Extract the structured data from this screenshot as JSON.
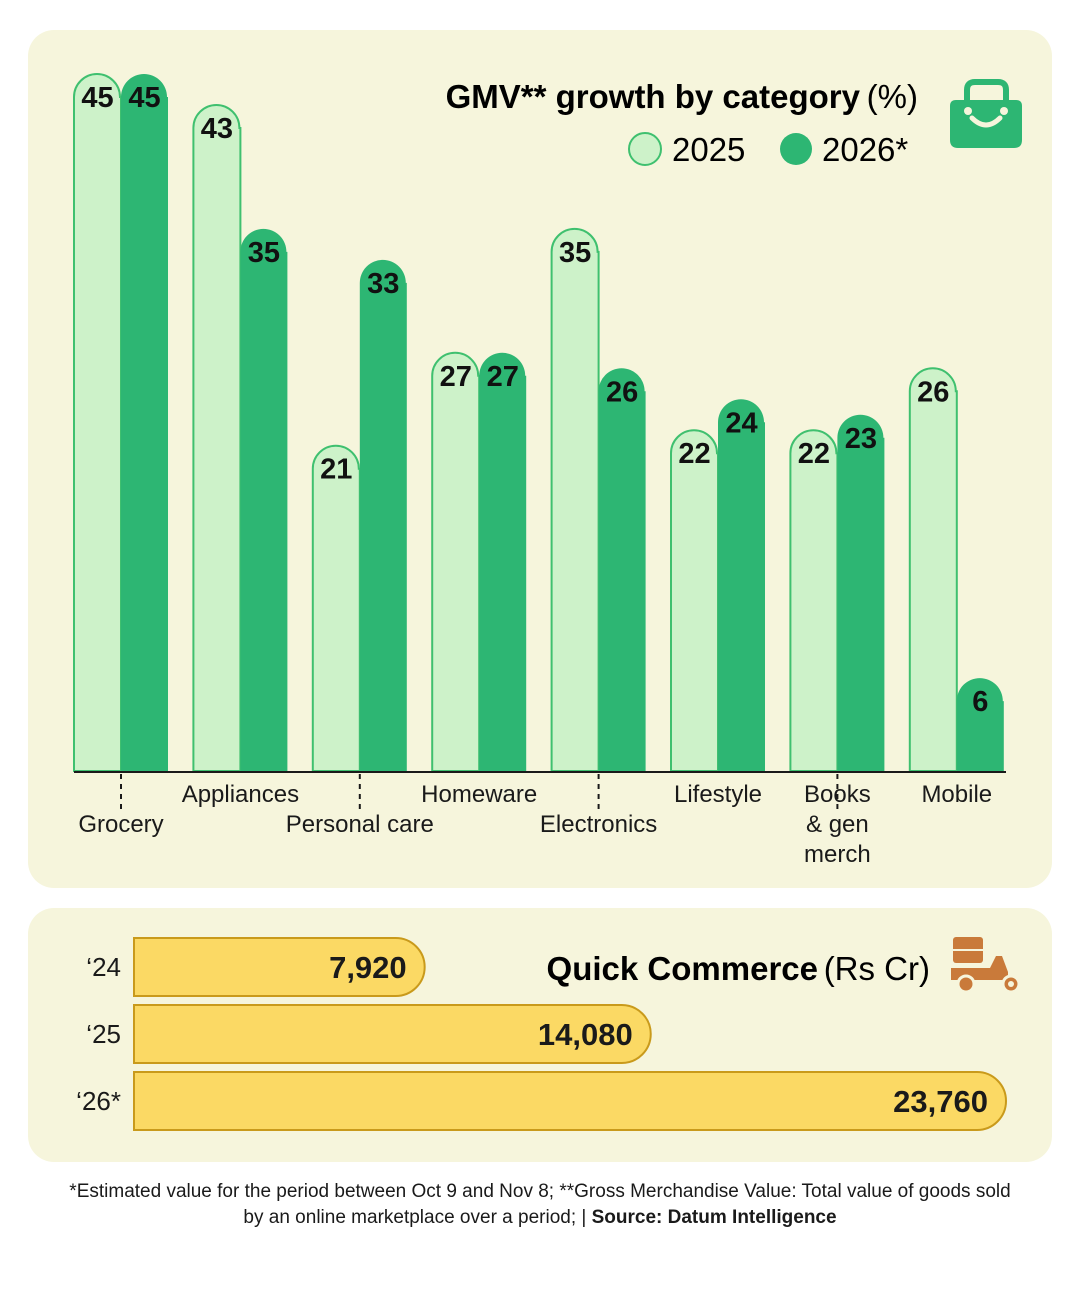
{
  "chart_data": [
    {
      "type": "bar",
      "title": "GMV** growth by category",
      "title_unit": "(%)",
      "categories": [
        "Grocery",
        "Appliances",
        "Personal care",
        "Homeware",
        "Electronics",
        "Lifestyle",
        "Books & gen merch",
        "Mobile"
      ],
      "category_label_lines": [
        [
          "Grocery"
        ],
        [
          "Appliances"
        ],
        [
          "Personal care"
        ],
        [
          "Homeware"
        ],
        [
          "Electronics"
        ],
        [
          "Lifestyle"
        ],
        [
          "Books",
          "& gen",
          "merch"
        ],
        [
          "Mobile"
        ]
      ],
      "series": [
        {
          "name": "2025",
          "values": [
            45,
            43,
            21,
            27,
            35,
            22,
            22,
            26
          ],
          "color": "#cdf2c9"
        },
        {
          "name": "2026*",
          "values": [
            45,
            35,
            33,
            27,
            26,
            24,
            23,
            6
          ],
          "color": "#2db673"
        }
      ],
      "ylim": [
        0,
        45
      ],
      "legend_position": "top-right",
      "grid": false,
      "icon": "shopping-bag-icon"
    },
    {
      "type": "bar",
      "orientation": "horizontal",
      "title": "Quick Commerce",
      "title_unit": "(Rs Cr)",
      "categories": [
        "‘24",
        "‘25",
        "‘26*"
      ],
      "values": [
        7920,
        14080,
        23760
      ],
      "value_labels": [
        "7,920",
        "14,080",
        "23,760"
      ],
      "color": "#fbd964",
      "xlim": [
        0,
        23760
      ],
      "icon": "scooter-icon"
    }
  ],
  "footnote": {
    "text": "*Estimated value for the period between Oct 9 and Nov 8; **Gross Merchandise Value: Total value of goods sold by an online marketplace over a period;  | ",
    "source": "Source: Datum Intelligence"
  },
  "colors": {
    "panel_bg": "#f6f5dc",
    "light_green": "#cdf2c9",
    "dark_green": "#2db673",
    "outline_green": "#3fc06f",
    "yellow": "#fbd964",
    "yellow_outline": "#c99a1b",
    "scooter": "#c97a3a"
  }
}
